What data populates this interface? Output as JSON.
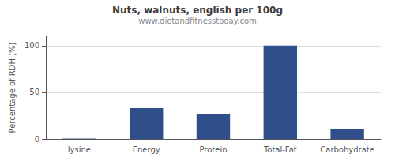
{
  "chart_data": {
    "type": "bar",
    "title": "Nuts, walnuts, english per 100g",
    "subtitle": "www.dietandfitnesstoday.com",
    "ylabel": "Percentage of RDH (%)",
    "categories": [
      "lysine",
      "Energy",
      "Protein",
      "Total-Fat",
      "Carbohydrate"
    ],
    "values": [
      0.5,
      33,
      27,
      100,
      11
    ],
    "color": "#2e4f8a",
    "ylim": [
      0,
      110
    ],
    "yticks": [
      0,
      50,
      100
    ],
    "grid": true
  }
}
